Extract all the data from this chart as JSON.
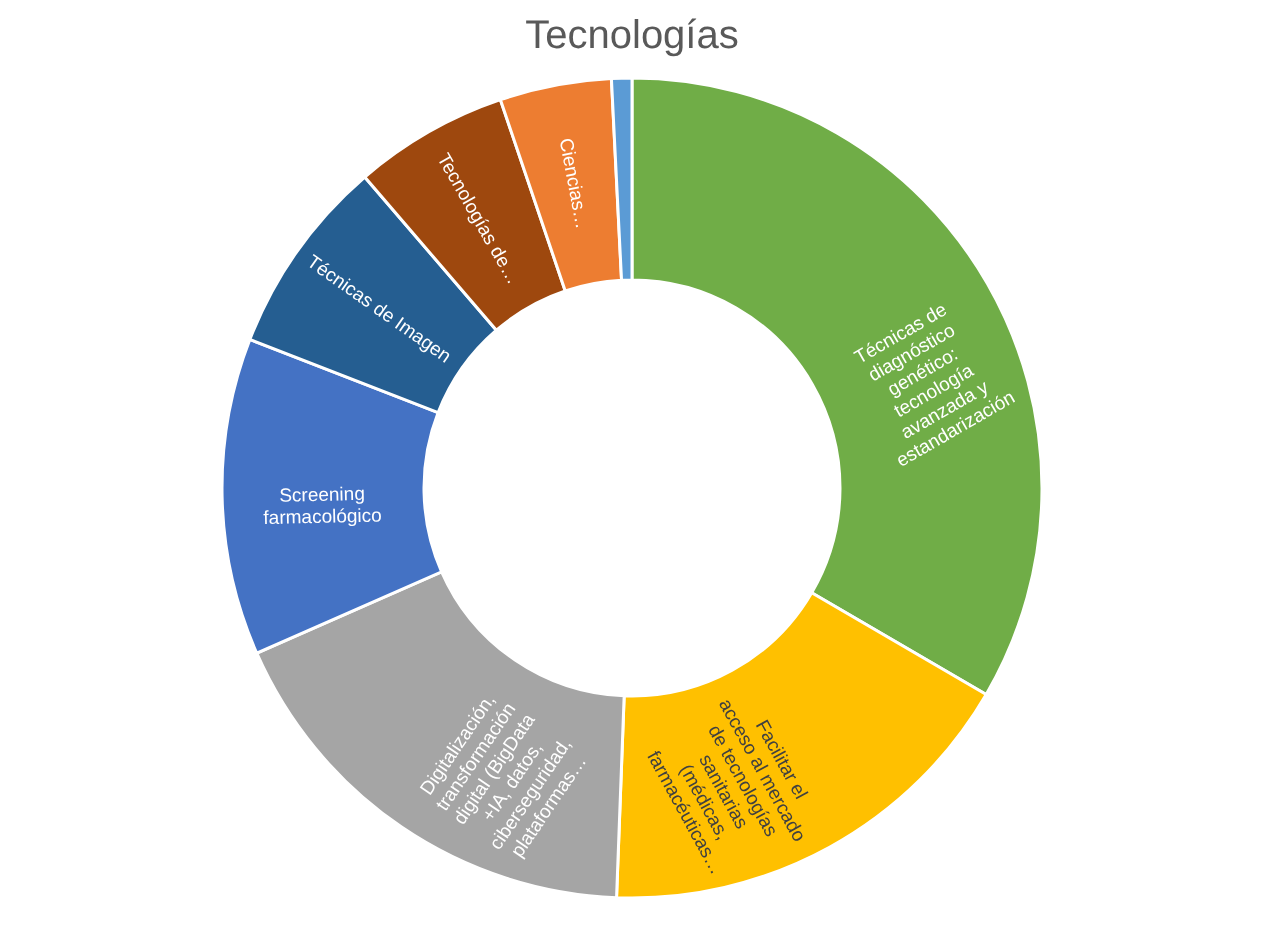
{
  "chart_data": {
    "type": "donut",
    "title": "Tecnologías",
    "categories": [
      "Técnicas de diagnóstico genético: tecnología avanzada y estandarización",
      "Facilitar el acceso al mercado de tecnologías sanitarias (médicas, farmacéuticas…",
      "Digitalización, transformación digital (BigData +IA, datos, ciberseguridad, plataformas…",
      "Screening farmacológico",
      "Técnicas de Imagen",
      "Tecnologías de…",
      "Ciencias…",
      null
    ],
    "values": [
      33.4,
      17.2,
      17.8,
      12.5,
      7.8,
      6.1,
      4.4,
      0.8
    ],
    "colors": [
      "#70ad47",
      "#ffc000",
      "#a5a5a5",
      "#4472c4",
      "#255e91",
      "#9e480e",
      "#ed7d31",
      "#5b9bd5"
    ],
    "legend": false
  }
}
